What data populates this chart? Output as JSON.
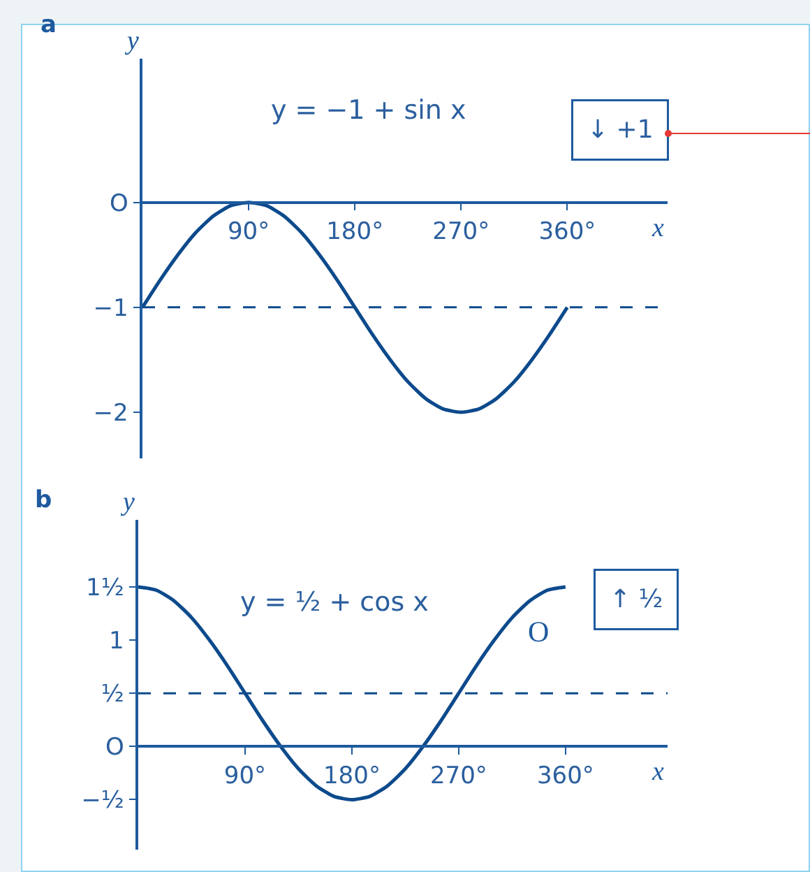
{
  "chart_data": [
    {
      "type": "line",
      "title": "a",
      "xlabel": "x",
      "ylabel": "y",
      "x": [
        0,
        15,
        30,
        45,
        60,
        75,
        90,
        105,
        120,
        135,
        150,
        165,
        180,
        195,
        210,
        225,
        240,
        255,
        270,
        285,
        300,
        315,
        330,
        345,
        360
      ],
      "series": [
        {
          "color": "#0d4a8c",
          "values": [
            -1,
            -0.74,
            -0.5,
            -0.29,
            -0.13,
            -0.03,
            0,
            -0.03,
            -0.13,
            -0.29,
            -0.5,
            -0.74,
            -1,
            -1.26,
            -1.5,
            -1.71,
            -1.87,
            -1.97,
            -2,
            -1.97,
            -1.87,
            -1.71,
            -1.5,
            -1.26,
            -1
          ]
        }
      ],
      "xlim": [
        0,
        445
      ],
      "ylim": [
        -2.44,
        1.37
      ],
      "xticks": [
        {
          "value": 90,
          "label": "90°"
        },
        {
          "value": 180,
          "label": "180°"
        },
        {
          "value": 270,
          "label": "270°"
        },
        {
          "value": 360,
          "label": "360°"
        }
      ],
      "yticks": [
        {
          "value": 0,
          "label": "O"
        },
        {
          "value": -1,
          "label": "−1"
        },
        {
          "value": -2,
          "label": "−2"
        }
      ],
      "ref_lines": [
        {
          "axis": "y",
          "value": -1,
          "color": "#0d4a8c",
          "line_style": "dashed"
        }
      ],
      "annotations": [
        "y = −1 + sin x",
        "↓ +1"
      ],
      "grid": false,
      "legend": false,
      "line_style": "solid",
      "marker": "none"
    },
    {
      "type": "line",
      "title": "b",
      "xlabel": "x",
      "ylabel": "y",
      "x": [
        0,
        15,
        30,
        45,
        60,
        75,
        90,
        105,
        120,
        135,
        150,
        165,
        180,
        195,
        210,
        225,
        240,
        255,
        270,
        285,
        300,
        315,
        330,
        345,
        360
      ],
      "series": [
        {
          "color": "#0d4a8c",
          "values": [
            1.5,
            1.47,
            1.37,
            1.21,
            1,
            0.76,
            0.5,
            0.24,
            0,
            -0.21,
            -0.37,
            -0.47,
            -0.5,
            -0.47,
            -0.37,
            -0.21,
            0,
            0.24,
            0.5,
            0.76,
            1,
            1.21,
            1.37,
            1.47,
            1.5
          ]
        }
      ],
      "xlim": [
        0,
        446
      ],
      "ylim": [
        -0.97,
        2.13
      ],
      "xticks": [
        {
          "value": 90,
          "label": "90°"
        },
        {
          "value": 180,
          "label": "180°"
        },
        {
          "value": 270,
          "label": "270°"
        },
        {
          "value": 360,
          "label": "360°"
        }
      ],
      "yticks": [
        {
          "value": 1.5,
          "label": "1½"
        },
        1,
        {
          "value": 0.5,
          "label": "½"
        },
        {
          "value": 0,
          "label": "O"
        },
        {
          "value": -0.5,
          "label": "−½"
        }
      ],
      "ref_lines": [
        {
          "axis": "y",
          "value": 0.5,
          "color": "#0d4a8c",
          "line_style": "dashed"
        }
      ],
      "annotations": [
        "y = ½ + cos x",
        "↑ ½",
        {
          "text": "O",
          "x": 326,
          "y": 1.26
        }
      ],
      "grid": false,
      "legend": false,
      "line_style": "solid",
      "marker": "none"
    }
  ]
}
